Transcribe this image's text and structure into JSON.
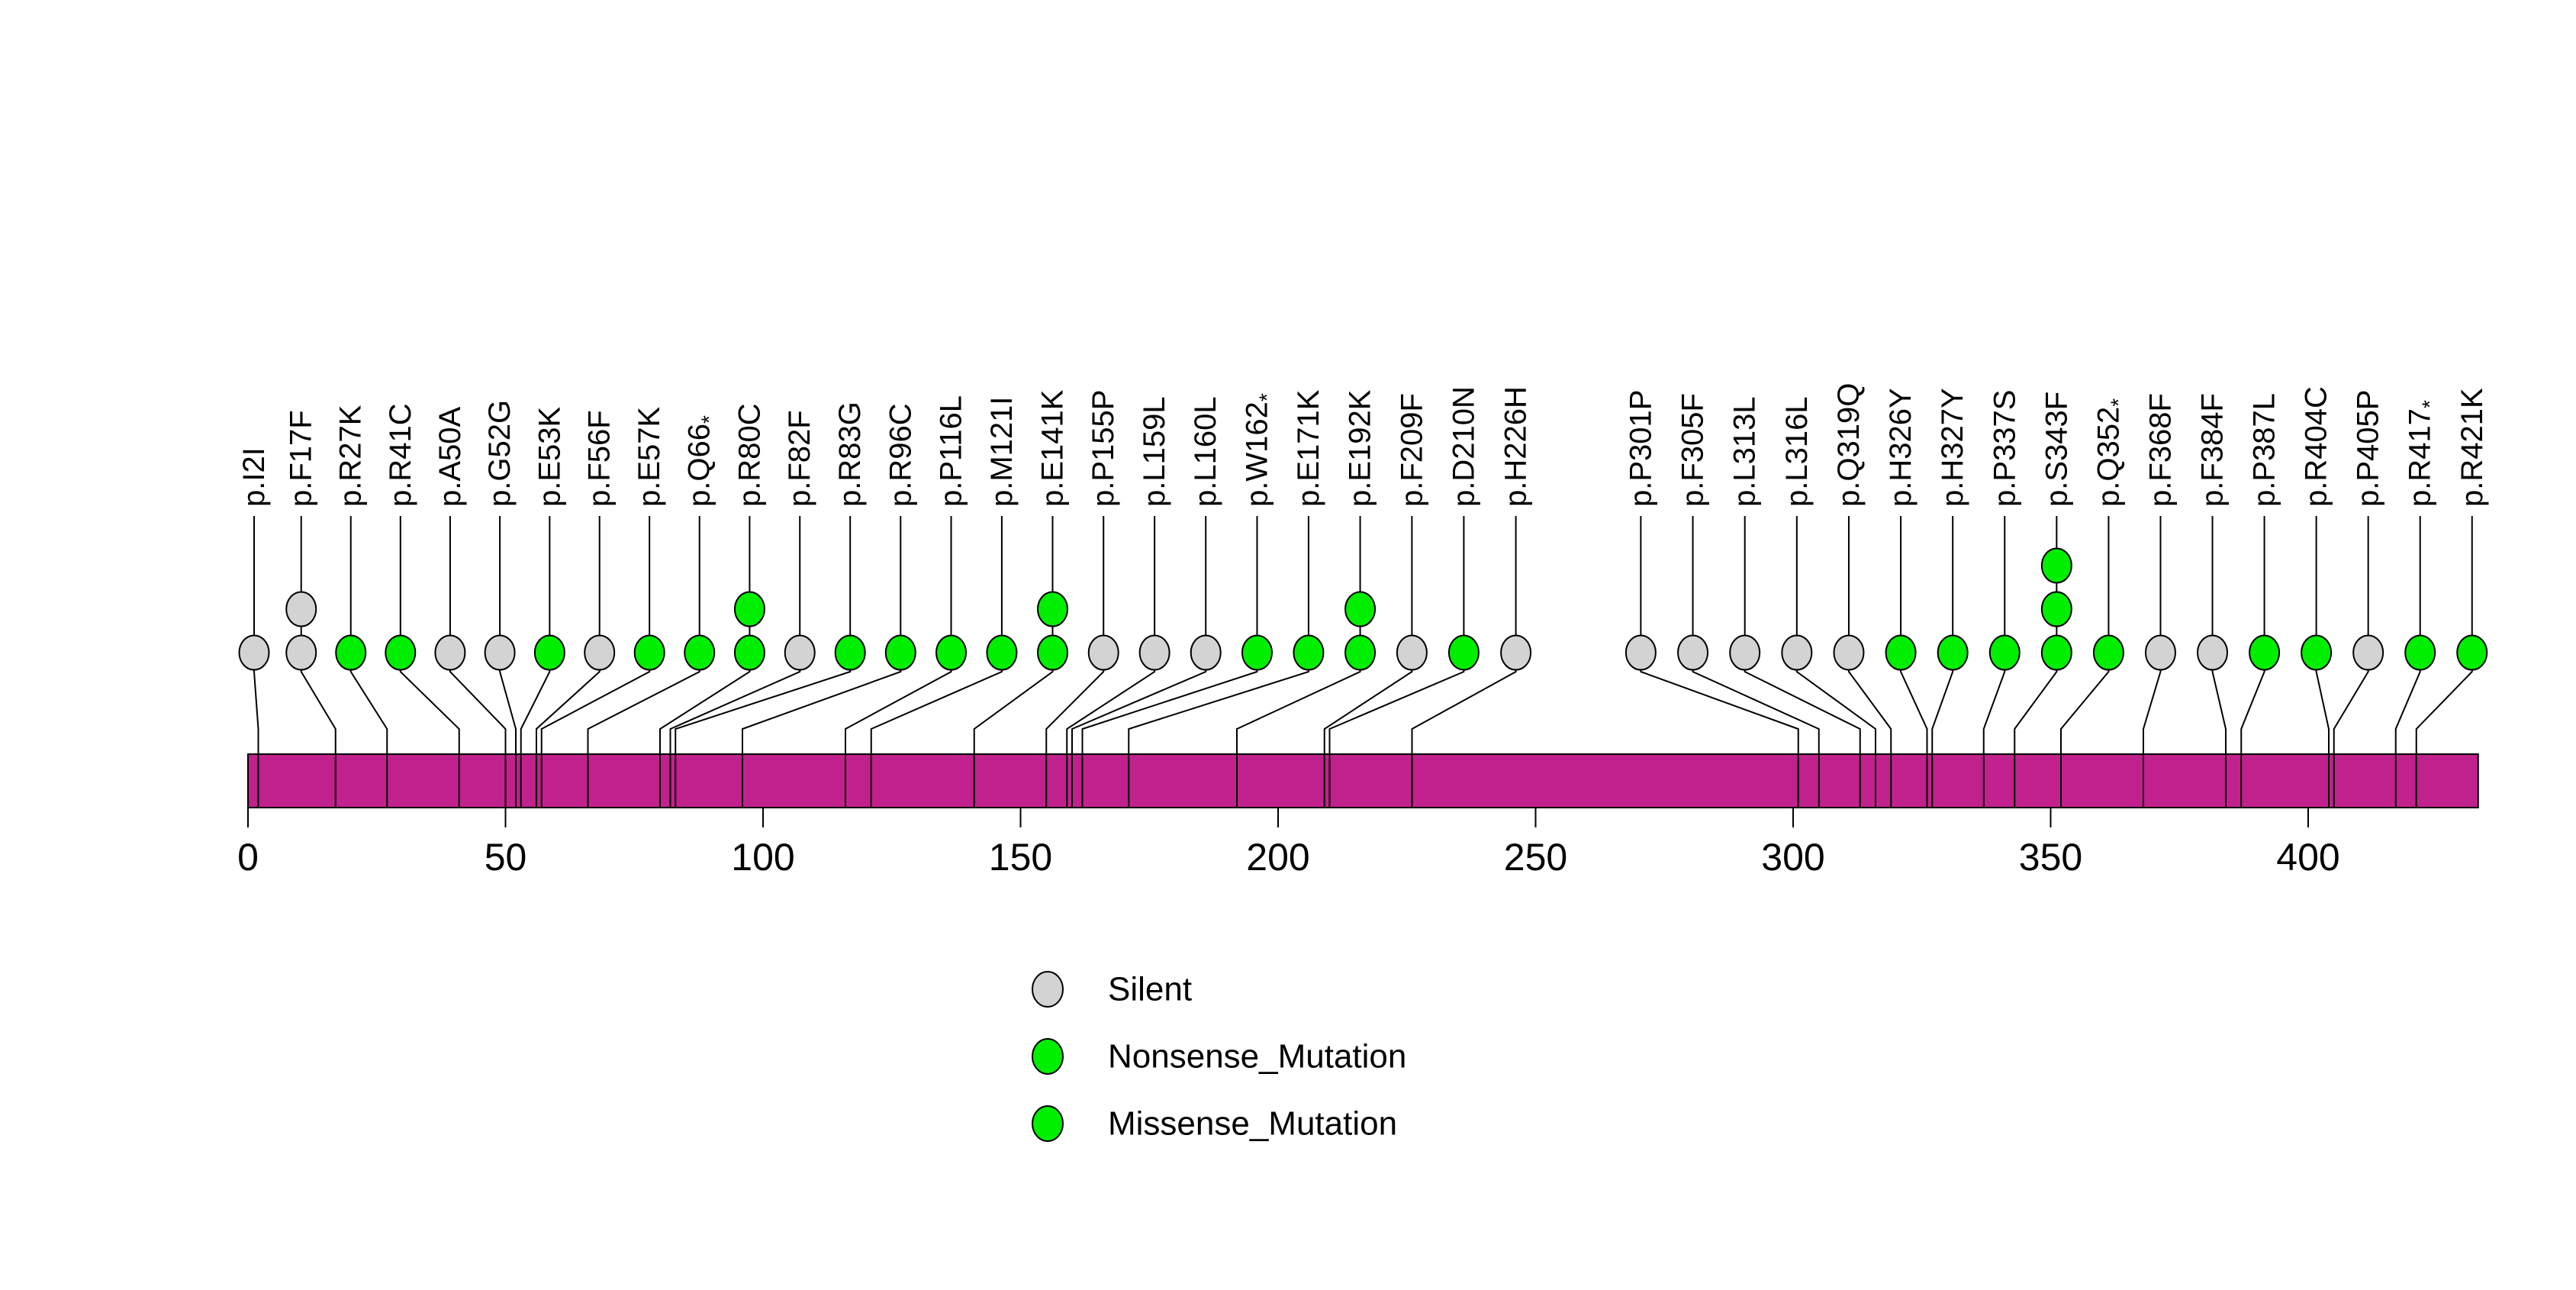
{
  "chart_data": {
    "type": "lollipop",
    "title": "",
    "xlabel": "",
    "ylabel": "",
    "axis": {
      "tick_values": [
        0,
        50,
        100,
        150,
        200,
        250,
        300,
        350,
        400
      ],
      "min": 0,
      "max": 433
    },
    "protein_length": 433,
    "colors": {
      "Silent": "#D3D3D3",
      "Nonsense_Mutation": "#00EE00",
      "Missense_Mutation": "#00EE00",
      "gene_bar": "#C1218C",
      "stroke": "#000000",
      "background": "#FFFFFF"
    },
    "legend": [
      {
        "label": "Silent",
        "type": "Silent"
      },
      {
        "label": "Nonsense_Mutation",
        "type": "Nonsense_Mutation"
      },
      {
        "label": "Missense_Mutation",
        "type": "Missense_Mutation"
      }
    ],
    "mutations": [
      {
        "label": "p.I2I",
        "pos": 2,
        "type": "Silent",
        "count": 1
      },
      {
        "label": "p.F17F",
        "pos": 17,
        "type": "Silent",
        "count": 2
      },
      {
        "label": "p.R27K",
        "pos": 27,
        "type": "Missense_Mutation",
        "count": 1
      },
      {
        "label": "p.R41C",
        "pos": 41,
        "type": "Missense_Mutation",
        "count": 1
      },
      {
        "label": "p.A50A",
        "pos": 50,
        "type": "Silent",
        "count": 1
      },
      {
        "label": "p.G52G",
        "pos": 52,
        "type": "Silent",
        "count": 1
      },
      {
        "label": "p.E53K",
        "pos": 53,
        "type": "Missense_Mutation",
        "count": 1
      },
      {
        "label": "p.F56F",
        "pos": 56,
        "type": "Silent",
        "count": 1
      },
      {
        "label": "p.E57K",
        "pos": 57,
        "type": "Missense_Mutation",
        "count": 1
      },
      {
        "label": "p.Q66*",
        "pos": 66,
        "type": "Nonsense_Mutation",
        "count": 1
      },
      {
        "label": "p.R80C",
        "pos": 80,
        "type": "Missense_Mutation",
        "count": 2
      },
      {
        "label": "p.F82F",
        "pos": 82,
        "type": "Silent",
        "count": 1
      },
      {
        "label": "p.R83G",
        "pos": 83,
        "type": "Missense_Mutation",
        "count": 1
      },
      {
        "label": "p.R96C",
        "pos": 96,
        "type": "Missense_Mutation",
        "count": 1
      },
      {
        "label": "p.P116L",
        "pos": 116,
        "type": "Missense_Mutation",
        "count": 1
      },
      {
        "label": "p.M121I",
        "pos": 121,
        "type": "Missense_Mutation",
        "count": 1
      },
      {
        "label": "p.E141K",
        "pos": 141,
        "type": "Missense_Mutation",
        "count": 2
      },
      {
        "label": "p.P155P",
        "pos": 155,
        "type": "Silent",
        "count": 1
      },
      {
        "label": "p.L159L",
        "pos": 159,
        "type": "Silent",
        "count": 1
      },
      {
        "label": "p.L160L",
        "pos": 160,
        "type": "Silent",
        "count": 1
      },
      {
        "label": "p.W162*",
        "pos": 162,
        "type": "Nonsense_Mutation",
        "count": 1
      },
      {
        "label": "p.E171K",
        "pos": 171,
        "type": "Missense_Mutation",
        "count": 1
      },
      {
        "label": "p.E192K",
        "pos": 192,
        "type": "Missense_Mutation",
        "count": 2
      },
      {
        "label": "p.F209F",
        "pos": 209,
        "type": "Silent",
        "count": 1
      },
      {
        "label": "p.D210N",
        "pos": 210,
        "type": "Missense_Mutation",
        "count": 1
      },
      {
        "label": "p.H226H",
        "pos": 226,
        "type": "Silent",
        "count": 1
      },
      {
        "label": "p.P301P",
        "pos": 301,
        "type": "Silent",
        "count": 1
      },
      {
        "label": "p.F305F",
        "pos": 305,
        "type": "Silent",
        "count": 1
      },
      {
        "label": "p.L313L",
        "pos": 313,
        "type": "Silent",
        "count": 1
      },
      {
        "label": "p.L316L",
        "pos": 316,
        "type": "Silent",
        "count": 1
      },
      {
        "label": "p.Q319Q",
        "pos": 319,
        "type": "Silent",
        "count": 1
      },
      {
        "label": "p.H326Y",
        "pos": 326,
        "type": "Missense_Mutation",
        "count": 1
      },
      {
        "label": "p.H327Y",
        "pos": 327,
        "type": "Missense_Mutation",
        "count": 1
      },
      {
        "label": "p.P337S",
        "pos": 337,
        "type": "Missense_Mutation",
        "count": 1
      },
      {
        "label": "p.S343F",
        "pos": 343,
        "type": "Missense_Mutation",
        "count": 3
      },
      {
        "label": "p.Q352*",
        "pos": 352,
        "type": "Nonsense_Mutation",
        "count": 1
      },
      {
        "label": "p.F368F",
        "pos": 368,
        "type": "Silent",
        "count": 1
      },
      {
        "label": "p.F384F",
        "pos": 384,
        "type": "Silent",
        "count": 1
      },
      {
        "label": "p.P387L",
        "pos": 387,
        "type": "Missense_Mutation",
        "count": 1
      },
      {
        "label": "p.R404C",
        "pos": 404,
        "type": "Missense_Mutation",
        "count": 1
      },
      {
        "label": "p.P405P",
        "pos": 405,
        "type": "Silent",
        "count": 1
      },
      {
        "label": "p.R417*",
        "pos": 417,
        "type": "Nonsense_Mutation",
        "count": 1
      },
      {
        "label": "p.R421K",
        "pos": 421,
        "type": "Missense_Mutation",
        "count": 1
      }
    ]
  }
}
